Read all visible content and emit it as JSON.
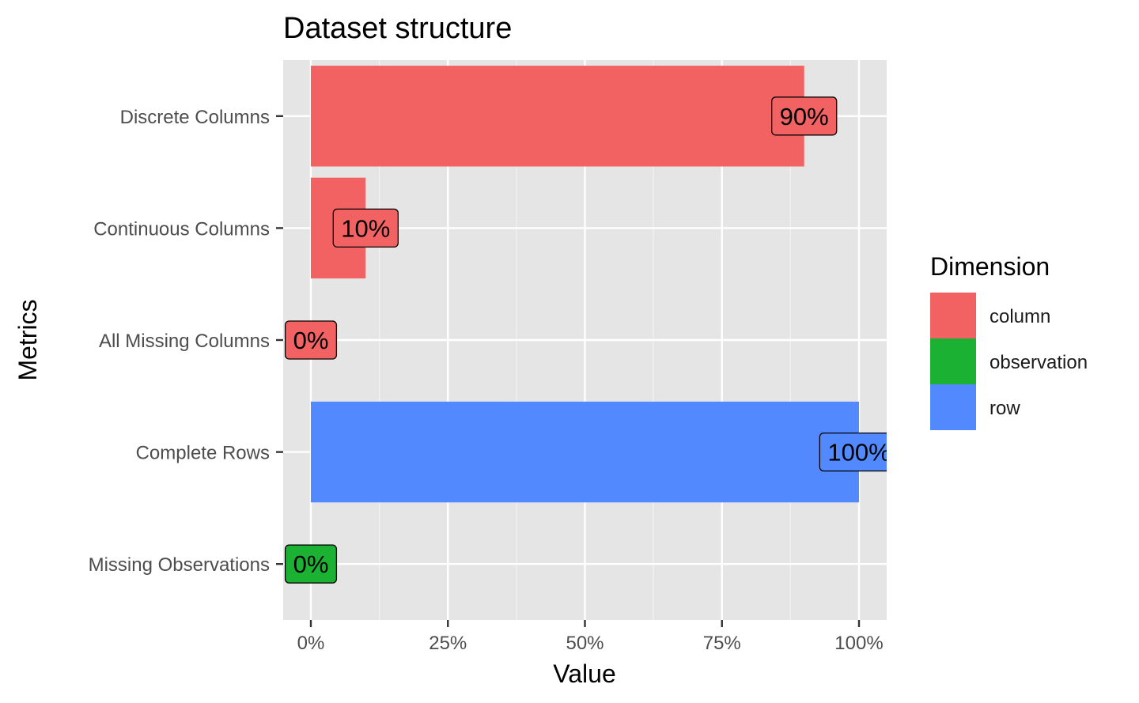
{
  "chart_data": {
    "type": "bar",
    "orientation": "horizontal",
    "title": "Dataset structure",
    "xlabel": "Value",
    "ylabel": "Metrics",
    "xlim": [
      0,
      1
    ],
    "x_ticks": [
      {
        "value": 0,
        "label": "0%"
      },
      {
        "value": 0.25,
        "label": "25%"
      },
      {
        "value": 0.5,
        "label": "50%"
      },
      {
        "value": 0.75,
        "label": "75%"
      },
      {
        "value": 1,
        "label": "100%"
      }
    ],
    "categories": [
      "Discrete Columns",
      "Continuous Columns",
      "All Missing Columns",
      "Complete Rows",
      "Missing Observations"
    ],
    "bars": [
      {
        "category": "Discrete Columns",
        "value": 0.9,
        "label": "90%",
        "dimension": "column"
      },
      {
        "category": "Continuous Columns",
        "value": 0.1,
        "label": "10%",
        "dimension": "column"
      },
      {
        "category": "All Missing Columns",
        "value": 0,
        "label": "0%",
        "dimension": "column"
      },
      {
        "category": "Complete Rows",
        "value": 1,
        "label": "100%",
        "dimension": "row"
      },
      {
        "category": "Missing Observations",
        "value": 0,
        "label": "0%",
        "dimension": "observation"
      }
    ],
    "legend": {
      "title": "Dimension",
      "position": "right",
      "entries": [
        {
          "name": "column",
          "color": "#F26262"
        },
        {
          "name": "observation",
          "color": "#1BB132"
        },
        {
          "name": "row",
          "color": "#5289FF"
        }
      ]
    },
    "grid": true,
    "panel_background": "#E5E5E5"
  }
}
